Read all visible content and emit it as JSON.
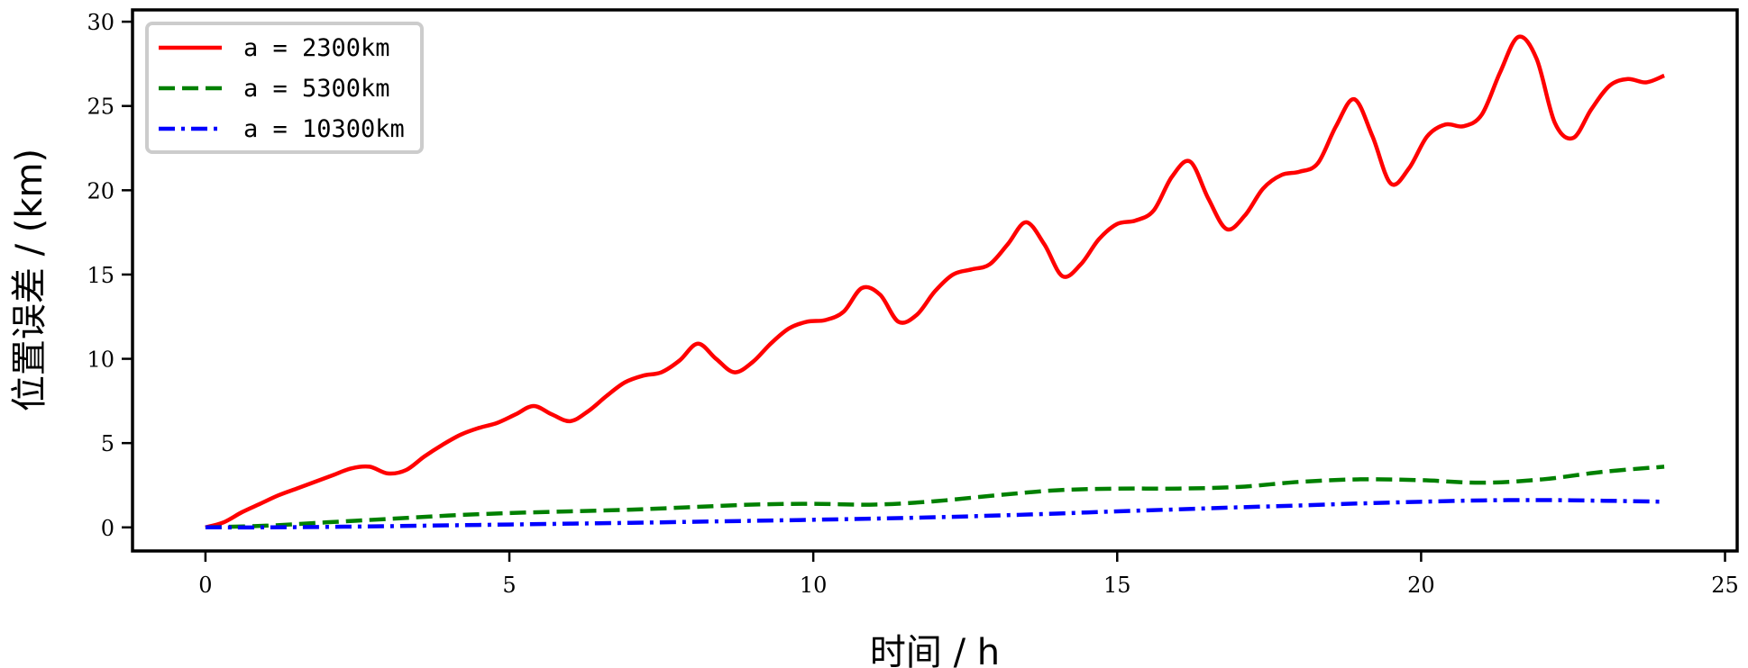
{
  "chart_data": {
    "type": "line",
    "title": "",
    "xlabel": "时间 / h",
    "ylabel": "位置误差 / (km)",
    "xlim": [
      -1.2,
      25.2
    ],
    "ylim": [
      -1.4,
      30.7
    ],
    "xticks": [
      "0",
      "5",
      "10",
      "15",
      "20",
      "25"
    ],
    "yticks": [
      "0",
      "5",
      "10",
      "15",
      "20",
      "25",
      "30"
    ],
    "grid": false,
    "legend_position": "top-left",
    "series": [
      {
        "name": "a = 2300km",
        "color": "#ff0000",
        "style": "solid",
        "x": [
          0,
          0.3,
          0.6,
          0.9,
          1.2,
          1.5,
          1.8,
          2.1,
          2.4,
          2.7,
          3.0,
          3.3,
          3.6,
          3.9,
          4.2,
          4.5,
          4.8,
          5.1,
          5.4,
          5.7,
          6.0,
          6.3,
          6.6,
          6.9,
          7.2,
          7.5,
          7.8,
          8.1,
          8.4,
          8.7,
          9.0,
          9.3,
          9.6,
          9.9,
          10.2,
          10.5,
          10.8,
          11.1,
          11.4,
          11.7,
          12.0,
          12.3,
          12.6,
          12.9,
          13.2,
          13.5,
          13.8,
          14.1,
          14.4,
          14.7,
          15.0,
          15.3,
          15.6,
          15.9,
          16.2,
          16.5,
          16.8,
          17.1,
          17.4,
          17.7,
          18.0,
          18.3,
          18.6,
          18.9,
          19.2,
          19.5,
          19.8,
          20.1,
          20.4,
          20.7,
          21.0,
          21.3,
          21.6,
          21.9,
          22.2,
          22.5,
          22.8,
          23.1,
          23.4,
          23.7,
          24.0
        ],
        "values": [
          0,
          0.3,
          0.9,
          1.4,
          1.9,
          2.3,
          2.7,
          3.1,
          3.5,
          3.6,
          3.2,
          3.4,
          4.2,
          4.9,
          5.5,
          5.9,
          6.2,
          6.7,
          7.2,
          6.7,
          6.3,
          6.9,
          7.8,
          8.6,
          9.0,
          9.2,
          9.9,
          10.9,
          10.0,
          9.2,
          9.8,
          10.9,
          11.8,
          12.2,
          12.3,
          12.8,
          14.2,
          13.8,
          12.2,
          12.6,
          14.0,
          15.0,
          15.3,
          15.6,
          16.8,
          18.1,
          16.8,
          14.9,
          15.6,
          17.1,
          18.0,
          18.2,
          18.8,
          20.8,
          21.7,
          19.5,
          17.7,
          18.5,
          20.1,
          20.9,
          21.1,
          21.6,
          23.8,
          25.4,
          23.2,
          20.4,
          21.3,
          23.2,
          23.9,
          23.8,
          24.5,
          27.0,
          29.1,
          27.8,
          24.0,
          23.1,
          24.8,
          26.2,
          26.6,
          26.4,
          26.8
        ]
      },
      {
        "name": "a = 5300km",
        "color": "#008000",
        "style": "dashed",
        "x": [
          0,
          1,
          2,
          3,
          4,
          5,
          6,
          7,
          8,
          9,
          10,
          11,
          12,
          13,
          14,
          15,
          16,
          17,
          18,
          19,
          20,
          21,
          22,
          23,
          24
        ],
        "values": [
          0,
          0.1,
          0.3,
          0.5,
          0.7,
          0.85,
          0.95,
          1.05,
          1.2,
          1.35,
          1.4,
          1.35,
          1.55,
          1.9,
          2.2,
          2.3,
          2.3,
          2.4,
          2.7,
          2.85,
          2.8,
          2.65,
          2.85,
          3.3,
          3.6
        ]
      },
      {
        "name": "a = 10300km",
        "color": "#0000ff",
        "style": "dashdot",
        "x": [
          0,
          1,
          2,
          3,
          4,
          5,
          6,
          7,
          8,
          9,
          10,
          11,
          12,
          13,
          14,
          15,
          16,
          17,
          18,
          19,
          20,
          21,
          22,
          23,
          24
        ],
        "values": [
          0,
          0.0,
          0.03,
          0.07,
          0.12,
          0.17,
          0.22,
          0.27,
          0.33,
          0.39,
          0.45,
          0.52,
          0.6,
          0.7,
          0.82,
          0.95,
          1.07,
          1.19,
          1.3,
          1.42,
          1.52,
          1.6,
          1.62,
          1.58,
          1.52
        ]
      }
    ]
  }
}
